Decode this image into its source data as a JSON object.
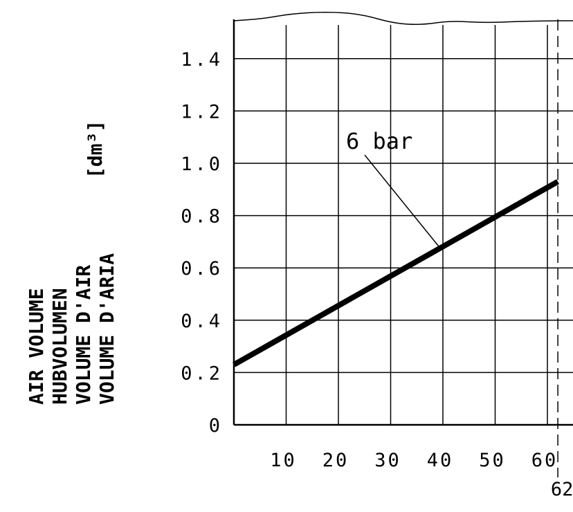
{
  "chart_data": {
    "type": "line",
    "title": "",
    "xlabel": "",
    "ylabel_lines": [
      "AIR VOLUME",
      "HUBVOLUMEN",
      "VOLUME D'AIR",
      "VOLUME D'ARIA"
    ],
    "unit": "[dm³]",
    "xlim": [
      0,
      65.5
    ],
    "ylim": [
      0,
      1.55
    ],
    "x_ticks": [
      10,
      20,
      30,
      40,
      50,
      60
    ],
    "y_ticks": [
      {
        "value": 0,
        "label": "0"
      },
      {
        "value": 0.2,
        "label": "0.2"
      },
      {
        "value": 0.4,
        "label": "0.4"
      },
      {
        "value": 0.6,
        "label": "0.6"
      },
      {
        "value": 0.8,
        "label": "0.8"
      },
      {
        "value": 1.0,
        "label": "1.0"
      },
      {
        "value": 1.2,
        "label": "1.2"
      },
      {
        "value": 1.4,
        "label": "1.4"
      }
    ],
    "grid": true,
    "series": [
      {
        "name": "6 bar",
        "x": [
          0,
          62
        ],
        "y": [
          0.23,
          0.93
        ],
        "color": "#000000"
      }
    ],
    "annotations": [
      {
        "text": "6 bar",
        "points_to": {
          "x": 39.5,
          "y": 0.675
        }
      }
    ],
    "reference_line": {
      "x": 62,
      "label": "62",
      "style": "dashed"
    }
  }
}
